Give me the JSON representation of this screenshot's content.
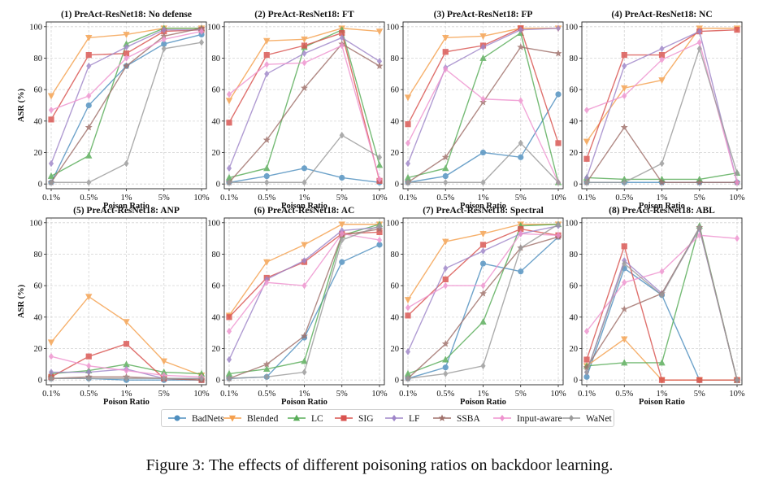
{
  "chart_data": [
    {
      "type": "line",
      "title": "(1) PreAct-ResNet18: No defense",
      "xlabel": "Poison Ratio",
      "ylabel": "ASR (%)",
      "categories": [
        "0.1%",
        "0.5%",
        "1%",
        "5%",
        "10%"
      ],
      "ylim": [
        -3,
        103
      ],
      "yticks": [
        0,
        20,
        40,
        60,
        80,
        100
      ],
      "grid": true,
      "series": [
        {
          "name": "BadNets",
          "values": [
            1,
            50,
            75,
            89,
            95
          ]
        },
        {
          "name": "Blended",
          "values": [
            56,
            93,
            95,
            99,
            99
          ]
        },
        {
          "name": "LC",
          "values": [
            5,
            18,
            89,
            99,
            99
          ]
        },
        {
          "name": "SIG",
          "values": [
            41,
            82,
            83,
            97,
            98
          ]
        },
        {
          "name": "LF",
          "values": [
            13,
            75,
            87,
            98,
            98
          ]
        },
        {
          "name": "SSBA",
          "values": [
            1,
            36,
            75,
            94,
            99
          ]
        },
        {
          "name": "Input-aware",
          "values": [
            47,
            56,
            80,
            92,
            97
          ]
        },
        {
          "name": "WaNet",
          "values": [
            1,
            1,
            13,
            86,
            90
          ]
        }
      ]
    },
    {
      "type": "line",
      "title": "(2) PreAct-ResNet18: FT",
      "xlabel": "Poison Ratio",
      "ylabel": "",
      "categories": [
        "0.1%",
        "0.5%",
        "1%",
        "5%",
        "10%"
      ],
      "ylim": [
        -3,
        103
      ],
      "yticks": [
        0,
        20,
        40,
        60,
        80,
        100
      ],
      "grid": true,
      "series": [
        {
          "name": "BadNets",
          "values": [
            1,
            5,
            10,
            4,
            1
          ]
        },
        {
          "name": "Blended",
          "values": [
            53,
            91,
            92,
            99,
            97
          ]
        },
        {
          "name": "LC",
          "values": [
            4,
            10,
            87,
            98,
            12
          ]
        },
        {
          "name": "SIG",
          "values": [
            39,
            82,
            88,
            96,
            2
          ]
        },
        {
          "name": "LF",
          "values": [
            10,
            70,
            83,
            93,
            78
          ]
        },
        {
          "name": "SSBA",
          "values": [
            1,
            28,
            61,
            89,
            75
          ]
        },
        {
          "name": "Input-aware",
          "values": [
            57,
            76,
            77,
            88,
            3
          ]
        },
        {
          "name": "WaNet",
          "values": [
            1,
            1,
            1,
            31,
            17
          ]
        }
      ]
    },
    {
      "type": "line",
      "title": "(3) PreAct-ResNet18: FP",
      "xlabel": "Poison Ratio",
      "ylabel": "",
      "categories": [
        "0.1%",
        "0.5%",
        "1%",
        "5%",
        "10%"
      ],
      "ylim": [
        -3,
        103
      ],
      "yticks": [
        0,
        20,
        40,
        60,
        80,
        100
      ],
      "grid": true,
      "series": [
        {
          "name": "BadNets",
          "values": [
            1,
            5,
            20,
            17,
            57
          ]
        },
        {
          "name": "Blended",
          "values": [
            55,
            93,
            94,
            99,
            99
          ]
        },
        {
          "name": "LC",
          "values": [
            4,
            10,
            80,
            96,
            1
          ]
        },
        {
          "name": "SIG",
          "values": [
            38,
            84,
            88,
            99,
            26
          ]
        },
        {
          "name": "LF",
          "values": [
            13,
            74,
            87,
            98,
            99
          ]
        },
        {
          "name": "SSBA",
          "values": [
            1,
            17,
            52,
            87,
            83
          ]
        },
        {
          "name": "Input-aware",
          "values": [
            26,
            73,
            54,
            53,
            1
          ]
        },
        {
          "name": "WaNet",
          "values": [
            1,
            1,
            1,
            26,
            1
          ]
        }
      ]
    },
    {
      "type": "line",
      "title": "(4) PreAct-ResNet18: NC",
      "xlabel": "Poison Ratio",
      "ylabel": "",
      "categories": [
        "0.1%",
        "0.5%",
        "1%",
        "5%",
        "10%"
      ],
      "ylim": [
        -3,
        103
      ],
      "yticks": [
        0,
        20,
        40,
        60,
        80,
        100
      ],
      "grid": true,
      "series": [
        {
          "name": "BadNets",
          "values": [
            1,
            1,
            1,
            1,
            1
          ]
        },
        {
          "name": "Blended",
          "values": [
            27,
            61,
            66,
            99,
            99
          ]
        },
        {
          "name": "LC",
          "values": [
            4,
            3,
            3,
            3,
            7
          ]
        },
        {
          "name": "SIG",
          "values": [
            16,
            82,
            82,
            97,
            98
          ]
        },
        {
          "name": "LF",
          "values": [
            4,
            75,
            86,
            97,
            1
          ]
        },
        {
          "name": "SSBA",
          "values": [
            1,
            36,
            1,
            1,
            1
          ]
        },
        {
          "name": "Input-aware",
          "values": [
            47,
            56,
            79,
            90,
            1
          ]
        },
        {
          "name": "WaNet",
          "values": [
            1,
            1,
            13,
            86,
            7
          ]
        }
      ]
    },
    {
      "type": "line",
      "title": "(5) PreAct-ResNet18: ANP",
      "xlabel": "Poison Ratio",
      "ylabel": "ASR (%)",
      "categories": [
        "0.1%",
        "0.5%",
        "1%",
        "5%",
        "10%"
      ],
      "ylim": [
        -3,
        103
      ],
      "yticks": [
        0,
        20,
        40,
        60,
        80,
        100
      ],
      "grid": true,
      "series": [
        {
          "name": "BadNets",
          "values": [
            1,
            1,
            0,
            0,
            0
          ]
        },
        {
          "name": "Blended",
          "values": [
            24,
            53,
            37,
            12,
            3
          ]
        },
        {
          "name": "LC",
          "values": [
            4,
            6,
            10,
            5,
            4
          ]
        },
        {
          "name": "SIG",
          "values": [
            2,
            15,
            23,
            1,
            0
          ]
        },
        {
          "name": "LF",
          "values": [
            5,
            5,
            7,
            1,
            1
          ]
        },
        {
          "name": "SSBA",
          "values": [
            1,
            2,
            2,
            1,
            0
          ]
        },
        {
          "name": "Input-aware",
          "values": [
            15,
            9,
            6,
            3,
            2
          ]
        },
        {
          "name": "WaNet",
          "values": [
            1,
            1,
            1,
            1,
            1
          ]
        }
      ]
    },
    {
      "type": "line",
      "title": "(6) PreAct-ResNet18: AC",
      "xlabel": "Poison Ratio",
      "ylabel": "",
      "categories": [
        "0.1%",
        "0.5%",
        "1%",
        "5%",
        "10%"
      ],
      "ylim": [
        -3,
        103
      ],
      "yticks": [
        0,
        20,
        40,
        60,
        80,
        100
      ],
      "grid": true,
      "series": [
        {
          "name": "BadNets",
          "values": [
            1,
            2,
            27,
            75,
            86
          ]
        },
        {
          "name": "Blended",
          "values": [
            41,
            75,
            86,
            99,
            99
          ]
        },
        {
          "name": "LC",
          "values": [
            4,
            7,
            12,
            92,
            99
          ]
        },
        {
          "name": "SIG",
          "values": [
            40,
            65,
            75,
            93,
            94
          ]
        },
        {
          "name": "LF",
          "values": [
            13,
            64,
            76,
            95,
            97
          ]
        },
        {
          "name": "SSBA",
          "values": [
            1,
            10,
            28,
            92,
            96
          ]
        },
        {
          "name": "Input-aware",
          "values": [
            31,
            62,
            60,
            93,
            89
          ]
        },
        {
          "name": "WaNet",
          "values": [
            1,
            2,
            5,
            89,
            98
          ]
        }
      ]
    },
    {
      "type": "line",
      "title": "(7) PreAct-ResNet18: Spectral",
      "xlabel": "Poison Ratio",
      "ylabel": "",
      "categories": [
        "0.1%",
        "0.5%",
        "1%",
        "5%",
        "10%"
      ],
      "ylim": [
        -3,
        103
      ],
      "yticks": [
        0,
        20,
        40,
        60,
        80,
        100
      ],
      "grid": true,
      "series": [
        {
          "name": "BadNets",
          "values": [
            1,
            8,
            74,
            69,
            91
          ]
        },
        {
          "name": "Blended",
          "values": [
            51,
            88,
            93,
            99,
            99
          ]
        },
        {
          "name": "LC",
          "values": [
            4,
            13,
            37,
            98,
            99
          ]
        },
        {
          "name": "SIG",
          "values": [
            41,
            64,
            86,
            96,
            92
          ]
        },
        {
          "name": "LF",
          "values": [
            18,
            71,
            82,
            93,
            98
          ]
        },
        {
          "name": "SSBA",
          "values": [
            1,
            23,
            55,
            84,
            91
          ]
        },
        {
          "name": "Input-aware",
          "values": [
            46,
            60,
            60,
            93,
            92
          ]
        },
        {
          "name": "WaNet",
          "values": [
            1,
            4,
            9,
            84,
            99
          ]
        }
      ]
    },
    {
      "type": "line",
      "title": "(8) PreAct-ResNet18: ABL",
      "xlabel": "Poison Ratio",
      "ylabel": "",
      "categories": [
        "0.1%",
        "0.5%",
        "1%",
        "5%",
        "10%"
      ],
      "ylim": [
        -3,
        103
      ],
      "yticks": [
        0,
        20,
        40,
        60,
        80,
        100
      ],
      "grid": true,
      "series": [
        {
          "name": "BadNets",
          "values": [
            2,
            71,
            54,
            0,
            0
          ]
        },
        {
          "name": "Blended",
          "values": [
            9,
            26,
            0,
            0,
            0
          ]
        },
        {
          "name": "LC",
          "values": [
            9,
            11,
            11,
            98,
            0
          ]
        },
        {
          "name": "SIG",
          "values": [
            13,
            85,
            0,
            0,
            0
          ]
        },
        {
          "name": "LF",
          "values": [
            5,
            76,
            55,
            96,
            0
          ]
        },
        {
          "name": "SSBA",
          "values": [
            8,
            45,
            55,
            97,
            0
          ]
        },
        {
          "name": "Input-aware",
          "values": [
            31,
            62,
            69,
            92,
            90
          ]
        },
        {
          "name": "WaNet",
          "values": [
            5,
            74,
            54,
            97,
            0
          ]
        }
      ]
    }
  ],
  "legend": {
    "placement": "bottom",
    "items": [
      {
        "name": "BadNets",
        "color": "#4f8fbf",
        "marker": "circle"
      },
      {
        "name": "Blended",
        "color": "#f5a04e",
        "marker": "triangle-down"
      },
      {
        "name": "LC",
        "color": "#59ad59",
        "marker": "triangle-up"
      },
      {
        "name": "SIG",
        "color": "#d9534f",
        "marker": "square"
      },
      {
        "name": "LF",
        "color": "#9f86c9",
        "marker": "diamond"
      },
      {
        "name": "SSBA",
        "color": "#a0716b",
        "marker": "star"
      },
      {
        "name": "Input-aware",
        "color": "#ef93cf",
        "marker": "diamond"
      },
      {
        "name": "WaNet",
        "color": "#9b9b9b",
        "marker": "diamond"
      }
    ]
  },
  "caption": "Figure 3: The effects of different poisoning ratios on backdoor learning."
}
